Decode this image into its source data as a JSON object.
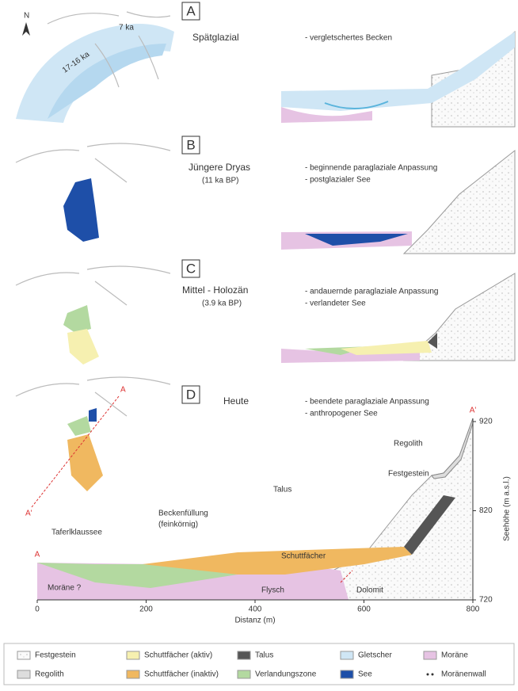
{
  "panels": [
    {
      "letter": "A",
      "title": "Spätglazial",
      "notes": [
        "- vergletschertes Becken"
      ],
      "map_labels": [
        "7 ka",
        "17-16 ka"
      ],
      "north": "N"
    },
    {
      "letter": "B",
      "title": "Jüngere Dryas",
      "period": "(11 ka BP)",
      "notes": [
        "- beginnende paraglaziale Anpassung",
        "- postglazialer See"
      ]
    },
    {
      "letter": "C",
      "title": "Mittel - Holozän",
      "period": "(3.9 ka BP)",
      "notes": [
        "- andauernde paraglaziale Anpassung",
        "- verlandeter See"
      ]
    },
    {
      "letter": "D",
      "title": "Heute",
      "notes": [
        "- beendete paraglaziale Anpassung",
        "- anthropogener See"
      ],
      "map_labels": [
        "A",
        "A'"
      ]
    }
  ],
  "profile": {
    "start": "A",
    "end": "A'",
    "labels": [
      "Taferlklaussee",
      "Beckenfüllung",
      "(feinkörnig)",
      "Talus",
      "Festgestein",
      "Regolith",
      "Schuttfächer",
      "Moräne ?",
      "Flysch",
      "Dolomit"
    ],
    "x_axis": {
      "label": "Distanz (m)",
      "ticks": [
        0,
        200,
        400,
        600,
        800
      ]
    },
    "y_axis": {
      "label": "Seehöhe (m a.s.l.)",
      "ticks": [
        720,
        820,
        920
      ]
    }
  },
  "legend": [
    "Festgestein",
    "Schuttfächer (aktiv)",
    "Talus",
    "Gletscher",
    "Moräne",
    "Regolith",
    "Schuttfächer (inaktiv)",
    "Verlandungszone",
    "See",
    "Moränenwall"
  ]
}
